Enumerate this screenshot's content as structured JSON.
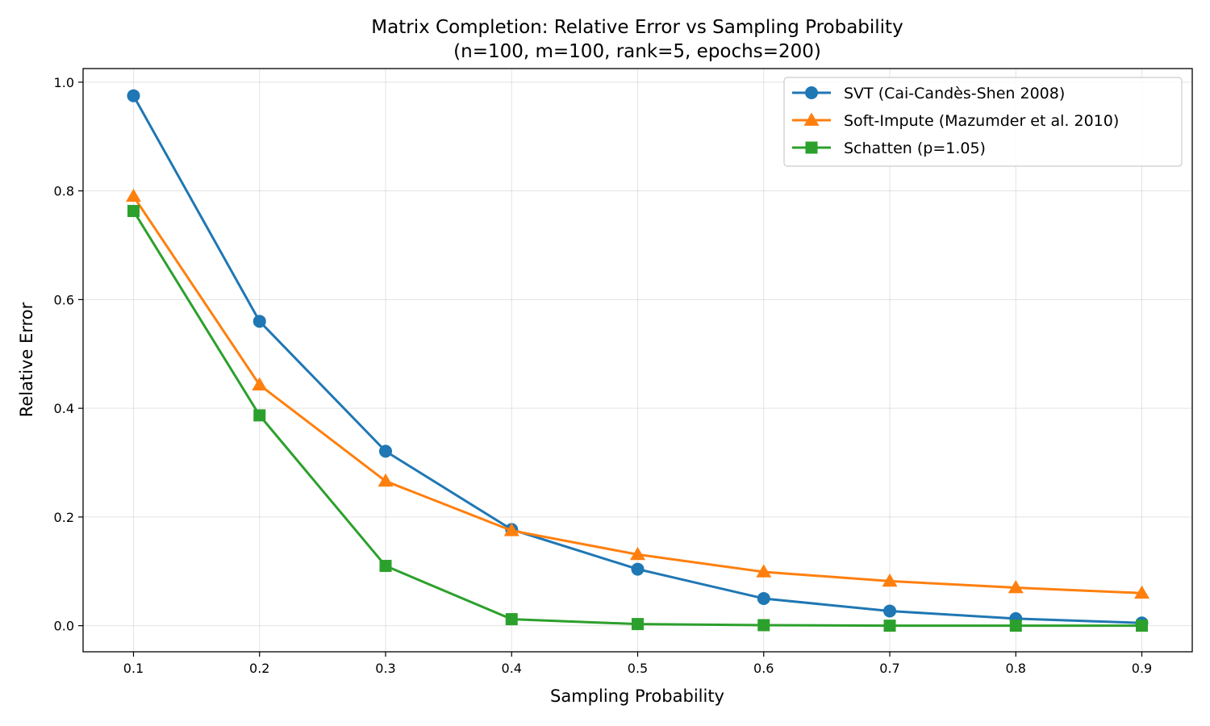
{
  "chart_data": {
    "type": "line",
    "title": "Matrix Completion: Relative Error vs Sampling Probability",
    "subtitle": "(n=100, m=100, rank=5, epochs=200)",
    "xlabel": "Sampling Probability",
    "ylabel": "Relative Error",
    "x": [
      0.1,
      0.2,
      0.3,
      0.4,
      0.5,
      0.6,
      0.7,
      0.8,
      0.9
    ],
    "x_tick_labels": [
      "0.1",
      "0.2",
      "0.3",
      "0.4",
      "0.5",
      "0.6",
      "0.7",
      "0.8",
      "0.9"
    ],
    "y_ticks": [
      0.0,
      0.2,
      0.4,
      0.6,
      0.8,
      1.0
    ],
    "y_tick_labels": [
      "0.0",
      "0.2",
      "0.4",
      "0.6",
      "0.8",
      "1.0"
    ],
    "xlim": [
      0.06,
      0.94
    ],
    "ylim": [
      -0.048,
      1.025
    ],
    "grid": true,
    "legend_position": "upper-right",
    "series": [
      {
        "name": "SVT (Cai-Candès-Shen 2008)",
        "color": "#1f77b4",
        "marker": "circle",
        "values": [
          0.975,
          0.56,
          0.321,
          0.177,
          0.104,
          0.05,
          0.027,
          0.013,
          0.005
        ]
      },
      {
        "name": "Soft-Impute (Mazumder et al. 2010)",
        "color": "#ff7f0e",
        "marker": "triangle",
        "values": [
          0.79,
          0.443,
          0.266,
          0.175,
          0.131,
          0.099,
          0.082,
          0.07,
          0.06
        ]
      },
      {
        "name": "Schatten (p=1.05)",
        "color": "#2ca02c",
        "marker": "square",
        "values": [
          0.763,
          0.387,
          0.11,
          0.012,
          0.003,
          0.001,
          0.0,
          0.0,
          0.0
        ]
      }
    ]
  }
}
